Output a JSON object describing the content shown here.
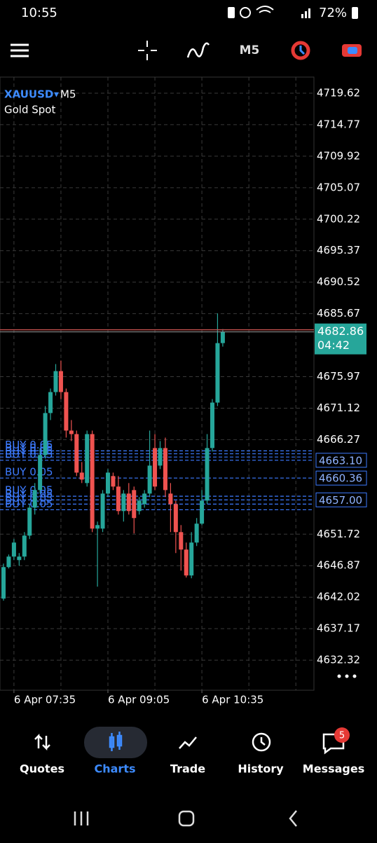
{
  "status_bar": {
    "time": "10:55",
    "battery": "72%"
  },
  "toolbar": {
    "timeframe": "M5"
  },
  "chart_data": {
    "type": "candlestick",
    "symbol": "XAUUSD",
    "timeframe": "M5",
    "description": "Gold Spot",
    "x": [
      null,
      null,
      "6 Apr 07:35",
      null,
      null,
      null,
      null,
      null,
      null,
      null,
      null,
      null,
      null,
      null,
      null,
      null,
      null,
      null,
      null,
      null,
      "6 Apr 09:05",
      null,
      null,
      null,
      null,
      null,
      null,
      null,
      null,
      null,
      null,
      null,
      null,
      null,
      null,
      null,
      null,
      null,
      "6 Apr 10:35",
      null,
      null,
      null,
      null
    ],
    "open": [
      4641.8,
      4646.65,
      4648.27,
      4647.73,
      4648.27,
      4651.5,
      4655.81,
      4658.51,
      4663.9,
      4670.37,
      4673.6,
      4676.83,
      4673.6,
      4667.67,
      4667.13,
      4661.2,
      4659.59,
      4667.13,
      4652.58,
      4652.58,
      4657.97,
      4660.67,
      4659.05,
      4655.28,
      4657.97,
      4658.51,
      4655.28,
      4656.35,
      4657.97,
      4664.98,
      4662.28,
      4664.98,
      4657.97,
      4656.35,
      4652.04,
      4649.35,
      4645.36,
      4650.43,
      4653.34,
      4656.89,
      4664.98,
      4671.98,
      4681.14
    ],
    "high": [
      4647.19,
      4648.59,
      4650.97,
      4648.81,
      4652.04,
      4656.35,
      4659.59,
      4664.98,
      4671.44,
      4674.14,
      4677.91,
      4678.45,
      4674.14,
      4669.29,
      4667.67,
      4662.82,
      4667.67,
      4667.67,
      4653.66,
      4658.51,
      4661.74,
      4661.2,
      4660.67,
      4658.51,
      4659.59,
      4659.05,
      4657.43,
      4658.51,
      4667.67,
      4667.13,
      4666.06,
      4666.59,
      4659.59,
      4656.89,
      4653.12,
      4650.43,
      4652.04,
      4654.2,
      4658.51,
      4667.13,
      4672.52,
      4685.71,
      4683.3
    ],
    "low": [
      4641.48,
      4646.44,
      4647.73,
      4646.87,
      4647.73,
      4650.97,
      4654.74,
      4657.97,
      4663.36,
      4669.29,
      4673.06,
      4672.52,
      4666.59,
      4666.06,
      4660.67,
      4659.59,
      4659.05,
      4652.04,
      4643.64,
      4652.04,
      4657.43,
      4658.51,
      4654.74,
      4653.66,
      4654.74,
      4651.83,
      4654.74,
      4655.81,
      4657.43,
      4658.51,
      4661.74,
      4657.43,
      4652.04,
      4648.81,
      4646.11,
      4645.04,
      4644.93,
      4649.89,
      4653.12,
      4656.35,
      4664.44,
      4671.44,
      4680.6
    ],
    "close": [
      4646.65,
      4648.27,
      4650.43,
      4648.27,
      4651.5,
      4655.81,
      4658.51,
      4663.9,
      4670.37,
      4673.6,
      4676.83,
      4673.6,
      4667.67,
      4667.13,
      4661.2,
      4660.13,
      4667.13,
      4652.58,
      4653.12,
      4657.97,
      4661.2,
      4659.05,
      4655.28,
      4657.97,
      4655.28,
      4654.2,
      4656.89,
      4657.97,
      4662.28,
      4659.05,
      4664.98,
      4658.51,
      4656.35,
      4652.04,
      4649.35,
      4645.36,
      4650.43,
      4653.34,
      4656.89,
      4664.98,
      4671.98,
      4681.14,
      4682.86
    ],
    "up_color": "#26a69a",
    "down_color": "#ef5350",
    "ylim": [
      4627.69,
      4722.1
    ],
    "yticks": [
      4632.32,
      4637.17,
      4642.02,
      4646.87,
      4651.72,
      4666.27,
      4671.12,
      4675.97,
      4685.67,
      4690.52,
      4695.37,
      4700.22,
      4705.07,
      4709.92,
      4714.77,
      4719.62
    ],
    "grid": true,
    "current_price": 4682.86,
    "countdown": "04:42",
    "orders": [
      {
        "label": "BUY 0.05",
        "price": 4664.55
      },
      {
        "label": "BUY 0.05",
        "price": 4664.1
      },
      {
        "label": "BUY 0.05",
        "price": 4663.6
      },
      {
        "label": "BUY 0.05",
        "price": {
          "value": 4663.1,
          "label": "4663.10"
        }
      },
      {
        "label": "BUY 0.05",
        "price": {
          "value": 4660.36,
          "label": "4660.36"
        }
      },
      {
        "label": "BUY 0.05",
        "price": 4657.56
      },
      {
        "label": "BUY 0.05",
        "price": {
          "value": 4657.0,
          "label": "4657.00"
        }
      },
      {
        "label": "BUY 0.05",
        "price": 4656.35
      },
      {
        "label": "BUY 0.05",
        "price": 4655.48
      }
    ]
  },
  "nav": {
    "items": [
      "Quotes",
      "Charts",
      "Trade",
      "History",
      "Messages"
    ],
    "active": 1,
    "badge": 5
  }
}
